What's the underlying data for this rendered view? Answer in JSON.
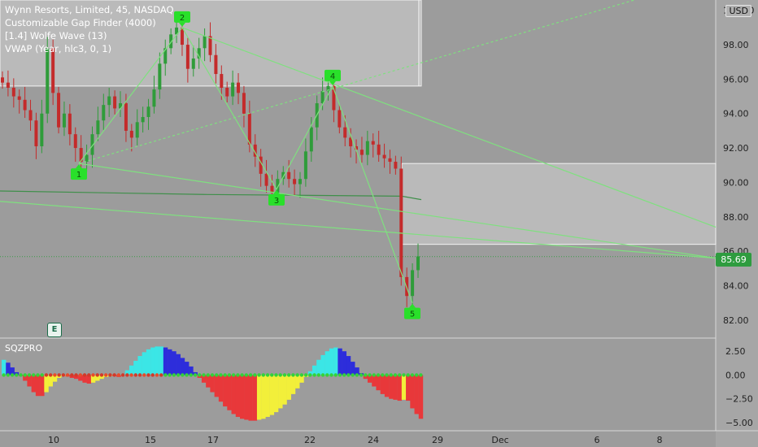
{
  "legend": {
    "line1": "Wynn Resorts, Limited, 45, NASDAQ",
    "line2": "Customizable Gap Finder (4000)",
    "line3": "[1.4] Wolfe Wave (13)",
    "line4": "VWAP (Year, hlc3, 0, 1)"
  },
  "currency_badge": "USD",
  "last_price_label": "85.69",
  "oscillator_label": "SQZPRO",
  "earnings_badge": "E",
  "colors": {
    "background": "#9c9c9c",
    "up_candle": "#2f9c3a",
    "down_candle": "#c42b2b",
    "wolfe_line": "#7fe07f",
    "wolfe_marker": "#29e02a",
    "gap_box": "#c4c4c4",
    "hist_red": "#e8383a",
    "hist_yellow": "#f2ef3a",
    "hist_cyan": "#3be6e6",
    "hist_blue": "#2d2ddb"
  },
  "chart_data": [
    {
      "type": "candlestick",
      "title": "Wynn Resorts, Limited, 45, NASDAQ",
      "x_ticks": [
        "10",
        "15",
        "17",
        "22",
        "24",
        "29",
        "Dec",
        "6",
        "8"
      ],
      "y_ticks": [
        82.0,
        84.0,
        86.0,
        88.0,
        90.0,
        92.0,
        94.0,
        96.0,
        98.0,
        100.0
      ],
      "ylim": [
        81.0,
        100.6
      ],
      "y_axis_side": "right",
      "last_price": 85.69,
      "close_series_approx": [
        95.8,
        95.5,
        95.0,
        94.8,
        94.2,
        93.6,
        92.1,
        94.0,
        97.8,
        95.2,
        93.2,
        94.0,
        92.8,
        92.0,
        91.2,
        91.6,
        92.8,
        93.6,
        94.5,
        95.0,
        94.3,
        94.6,
        93.0,
        92.6,
        93.5,
        93.8,
        94.4,
        95.4,
        96.9,
        97.8,
        98.6,
        99.0,
        98.0,
        96.6,
        97.2,
        97.8,
        98.5,
        97.4,
        96.3,
        95.5,
        95.0,
        95.8,
        95.2,
        94.0,
        92.2,
        91.5,
        90.5,
        89.8,
        89.4,
        90.2,
        90.6,
        90.2,
        89.9,
        90.2,
        91.8,
        93.2,
        94.6,
        95.3,
        95.6,
        94.2,
        93.2,
        92.6,
        92.1,
        91.9,
        91.6,
        92.4,
        92.2,
        91.6,
        91.4,
        91.2,
        90.8,
        84.5,
        83.4,
        84.9,
        85.7
      ],
      "gap_zones": [
        {
          "from_price": 95.6,
          "to_price": 100.6,
          "start_date": "10",
          "end_date": "28"
        },
        {
          "from_price": 86.4,
          "to_price": 91.1,
          "start_date": "26",
          "end_date": "Dec"
        }
      ],
      "vwap_values_approx": [
        89.5,
        89.3,
        89.2
      ]
    },
    {
      "type": "wolfe_wave",
      "points": [
        {
          "label": "1",
          "price": 91.1
        },
        {
          "label": "2",
          "price": 99.0
        },
        {
          "label": "3",
          "price": 89.6
        },
        {
          "label": "4",
          "price": 95.6
        },
        {
          "label": "5",
          "price": 83.0
        }
      ]
    },
    {
      "type": "bar",
      "title": "SQZPRO",
      "y_ticks": [
        2.5,
        0.0,
        -2.5,
        -5.0
      ],
      "ylim": [
        -5.6,
        3.8
      ],
      "values": [
        1.6,
        1.3,
        0.8,
        0.3,
        -0.1,
        -0.6,
        -1.2,
        -1.8,
        -2.2,
        -2.2,
        -1.8,
        -1.2,
        -0.7,
        -0.3,
        -0.1,
        -0.15,
        -0.3,
        -0.4,
        -0.6,
        -0.8,
        -0.9,
        -0.8,
        -0.6,
        -0.4,
        -0.2,
        -0.1,
        -0.1,
        -0.2,
        0.1,
        0.5,
        1.0,
        1.5,
        2.0,
        2.4,
        2.7,
        2.9,
        3.0,
        3.0,
        2.9,
        2.7,
        2.5,
        2.2,
        1.8,
        1.4,
        0.9,
        0.3,
        -0.3,
        -0.8,
        -1.3,
        -1.8,
        -2.3,
        -2.8,
        -3.3,
        -3.7,
        -4.1,
        -4.4,
        -4.6,
        -4.7,
        -4.8,
        -4.8,
        -4.7,
        -4.6,
        -4.4,
        -4.2,
        -3.9,
        -3.5,
        -3.1,
        -2.6,
        -2.0,
        -1.4,
        -0.8,
        -0.2,
        0.4,
        1.0,
        1.6,
        2.1,
        2.5,
        2.8,
        2.9,
        2.8,
        2.5,
        2.0,
        1.4,
        0.8,
        0.2,
        -0.4,
        -0.8,
        -1.2,
        -1.6,
        -2.0,
        -2.3,
        -2.5,
        -2.6,
        -2.7,
        -2.6,
        -2.7,
        -3.5,
        -4.1,
        -4.6
      ],
      "colors_order": [
        "hist_red",
        "hist_yellow",
        "hist_cyan",
        "hist_blue"
      ]
    }
  ]
}
